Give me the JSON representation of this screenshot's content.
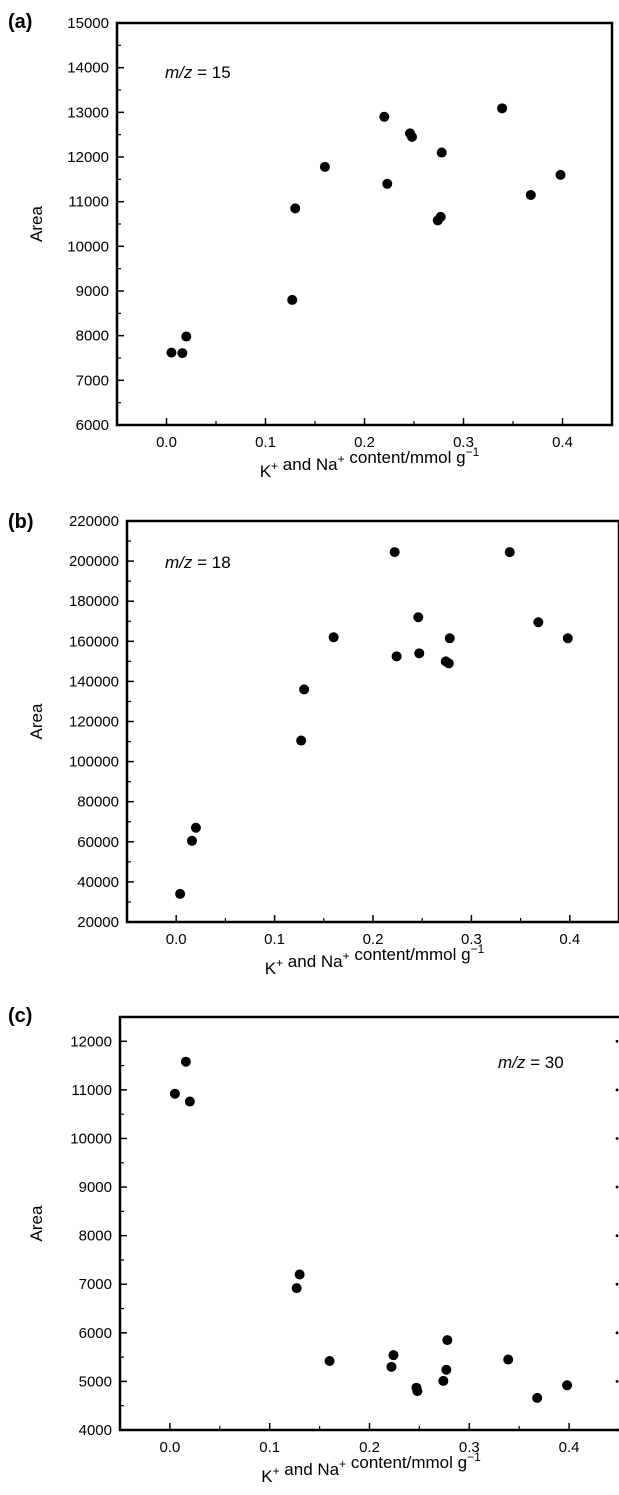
{
  "figure": {
    "panels": [
      "(a)",
      "(b)",
      "(c)"
    ]
  },
  "chart_data": [
    {
      "type": "scatter",
      "panel_label": "(a)",
      "annotation": "m/z = 15",
      "annotation_var": "m/z",
      "annotation_rest": " = 15",
      "annotation_position": "top-left",
      "xlabel": "K⁺ and Na⁺ content/mmol g⁻¹",
      "ylabel": "Area",
      "xlim": [
        -0.05,
        0.45
      ],
      "ylim": [
        6000,
        15000
      ],
      "xticks": [
        0.0,
        0.1,
        0.2,
        0.3,
        0.4
      ],
      "xtick_labels": [
        "0.0",
        "0.1",
        "0.2",
        "0.3",
        "0.4"
      ],
      "yticks": [
        6000,
        7000,
        8000,
        9000,
        10000,
        11000,
        12000,
        13000,
        14000,
        15000
      ],
      "ytick_labels": [
        "6000",
        "7000",
        "8000",
        "9000",
        "10000",
        "11000",
        "12000",
        "13000",
        "14000",
        "15000"
      ],
      "grid": false,
      "points": [
        {
          "x": 0.005,
          "y": 7620
        },
        {
          "x": 0.016,
          "y": 7610
        },
        {
          "x": 0.02,
          "y": 7980
        },
        {
          "x": 0.127,
          "y": 8800
        },
        {
          "x": 0.13,
          "y": 10850
        },
        {
          "x": 0.16,
          "y": 11780
        },
        {
          "x": 0.22,
          "y": 12900
        },
        {
          "x": 0.223,
          "y": 11400
        },
        {
          "x": 0.246,
          "y": 12530
        },
        {
          "x": 0.248,
          "y": 12450
        },
        {
          "x": 0.274,
          "y": 10580
        },
        {
          "x": 0.277,
          "y": 10660
        },
        {
          "x": 0.278,
          "y": 12100
        },
        {
          "x": 0.339,
          "y": 13090
        },
        {
          "x": 0.368,
          "y": 11150
        },
        {
          "x": 0.398,
          "y": 11600
        }
      ]
    },
    {
      "type": "scatter",
      "panel_label": "(b)",
      "annotation": "m/z = 18",
      "annotation_var": "m/z",
      "annotation_rest": " = 18",
      "annotation_position": "top-left",
      "xlabel": "K⁺ and Na⁺ content/mmol g⁻¹",
      "ylabel": "Area",
      "xlim": [
        -0.05,
        0.45
      ],
      "ylim": [
        20000,
        220000
      ],
      "xticks": [
        0.0,
        0.1,
        0.2,
        0.3,
        0.4
      ],
      "xtick_labels": [
        "0.0",
        "0.1",
        "0.2",
        "0.3",
        "0.4"
      ],
      "yticks": [
        20000,
        40000,
        60000,
        80000,
        100000,
        120000,
        140000,
        160000,
        180000,
        200000,
        220000
      ],
      "ytick_labels": [
        "20000",
        "40000",
        "60000",
        "80000",
        "100000",
        "120000",
        "140000",
        "160000",
        "180000",
        "200000",
        "220000"
      ],
      "grid": false,
      "points": [
        {
          "x": 0.004,
          "y": 34000
        },
        {
          "x": 0.016,
          "y": 60500
        },
        {
          "x": 0.02,
          "y": 67000
        },
        {
          "x": 0.127,
          "y": 110500
        },
        {
          "x": 0.13,
          "y": 136000
        },
        {
          "x": 0.16,
          "y": 162000
        },
        {
          "x": 0.222,
          "y": 204500
        },
        {
          "x": 0.224,
          "y": 152500
        },
        {
          "x": 0.246,
          "y": 172000
        },
        {
          "x": 0.247,
          "y": 154000
        },
        {
          "x": 0.274,
          "y": 150000
        },
        {
          "x": 0.277,
          "y": 149000
        },
        {
          "x": 0.278,
          "y": 161500
        },
        {
          "x": 0.339,
          "y": 204500
        },
        {
          "x": 0.368,
          "y": 169500
        },
        {
          "x": 0.398,
          "y": 161500
        }
      ]
    },
    {
      "type": "scatter",
      "panel_label": "(c)",
      "annotation": "m/z = 30",
      "annotation_var": "m/z",
      "annotation_rest": " = 30",
      "annotation_position": "top-right",
      "xlabel": "K⁺ and Na⁺ content/mmol g⁻¹",
      "ylabel": "Area",
      "xlim": [
        -0.05,
        0.45
      ],
      "ylim": [
        4000,
        12500
      ],
      "xticks": [
        0.0,
        0.1,
        0.2,
        0.3,
        0.4
      ],
      "xtick_labels": [
        "0.0",
        "0.1",
        "0.2",
        "0.3",
        "0.4"
      ],
      "yticks": [
        4000,
        5000,
        6000,
        7000,
        8000,
        9000,
        10000,
        11000,
        12000
      ],
      "ytick_labels": [
        "4000",
        "5000",
        "6000",
        "7000",
        "8000",
        "9000",
        "10000",
        "11000",
        "12000"
      ],
      "grid": false,
      "points": [
        {
          "x": 0.005,
          "y": 10920
        },
        {
          "x": 0.016,
          "y": 11580
        },
        {
          "x": 0.02,
          "y": 10760
        },
        {
          "x": 0.127,
          "y": 6920
        },
        {
          "x": 0.13,
          "y": 7200
        },
        {
          "x": 0.16,
          "y": 5420
        },
        {
          "x": 0.222,
          "y": 5300
        },
        {
          "x": 0.224,
          "y": 5540
        },
        {
          "x": 0.247,
          "y": 4870
        },
        {
          "x": 0.248,
          "y": 4800
        },
        {
          "x": 0.274,
          "y": 5010
        },
        {
          "x": 0.277,
          "y": 5240
        },
        {
          "x": 0.278,
          "y": 5850
        },
        {
          "x": 0.339,
          "y": 5450
        },
        {
          "x": 0.368,
          "y": 4660
        },
        {
          "x": 0.398,
          "y": 4920
        }
      ]
    }
  ]
}
